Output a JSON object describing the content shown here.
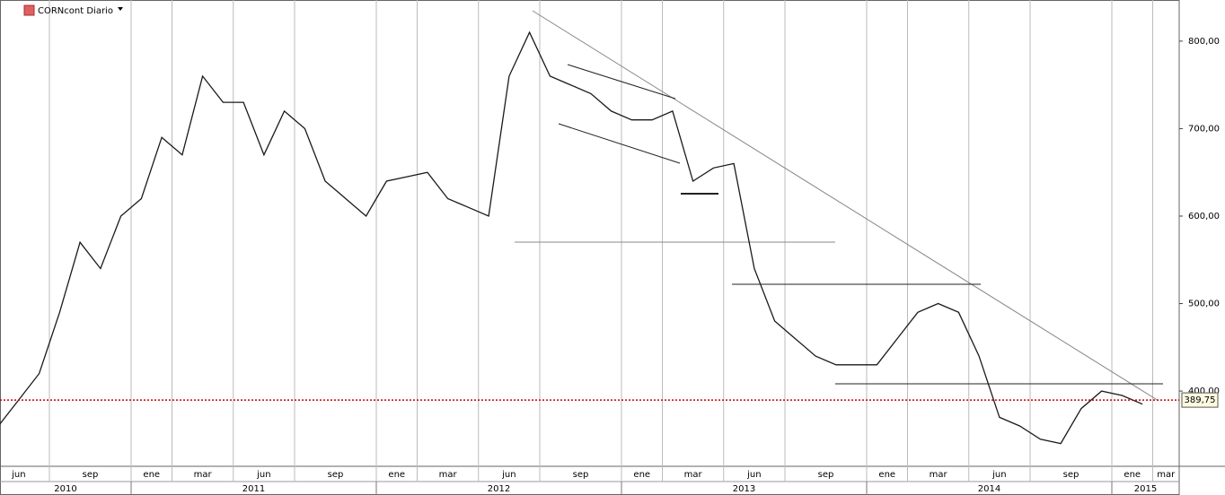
{
  "chart_data": {
    "type": "line",
    "title": "CORNcont Diario",
    "x": [
      "2010-06",
      "2010-07",
      "2010-08",
      "2010-09",
      "2010-10",
      "2010-11",
      "2010-12",
      "2011-01",
      "2011-02",
      "2011-03",
      "2011-04",
      "2011-05",
      "2011-06",
      "2011-07",
      "2011-08",
      "2011-09",
      "2011-10",
      "2011-11",
      "2011-12",
      "2012-01",
      "2012-02",
      "2012-03",
      "2012-04",
      "2012-05",
      "2012-06",
      "2012-07",
      "2012-08",
      "2012-09",
      "2012-10",
      "2012-11",
      "2012-12",
      "2013-01",
      "2013-02",
      "2013-03",
      "2013-04",
      "2013-05",
      "2013-06",
      "2013-07",
      "2013-08",
      "2013-09",
      "2013-10",
      "2013-11",
      "2013-12",
      "2014-01",
      "2014-02",
      "2014-03",
      "2014-04",
      "2014-05",
      "2014-06",
      "2014-07",
      "2014-08",
      "2014-09",
      "2014-10",
      "2014-11",
      "2014-12",
      "2015-01",
      "2015-02"
    ],
    "series": [
      {
        "name": "CORNcont",
        "color": "#1a1a1a",
        "values": [
          360,
          390,
          420,
          490,
          570,
          540,
          600,
          620,
          690,
          670,
          760,
          730,
          730,
          670,
          720,
          700,
          640,
          620,
          600,
          640,
          645,
          650,
          620,
          610,
          600,
          760,
          810,
          760,
          750,
          740,
          720,
          710,
          710,
          720,
          640,
          655,
          660,
          540,
          480,
          460,
          440,
          430,
          430,
          430,
          460,
          490,
          500,
          490,
          440,
          370,
          360,
          345,
          340,
          380,
          400,
          395,
          385
        ]
      }
    ],
    "ylim": [
      314,
      847
    ],
    "yticks": [
      {
        "value": 400,
        "label": "400,00"
      },
      {
        "value": 500,
        "label": "500,00"
      },
      {
        "value": 600,
        "label": "600,00"
      },
      {
        "value": 700,
        "label": "700,00"
      },
      {
        "value": 800,
        "label": "800,00"
      }
    ],
    "xticks": [
      {
        "value": "2010-06",
        "label": "jun"
      },
      {
        "value": "2010-09",
        "label": "sep"
      },
      {
        "value": "2011-01",
        "label": "ene"
      },
      {
        "value": "2011-03",
        "label": "mar"
      },
      {
        "value": "2011-06",
        "label": "jun"
      },
      {
        "value": "2011-09",
        "label": "sep"
      },
      {
        "value": "2012-01",
        "label": "ene"
      },
      {
        "value": "2012-03",
        "label": "mar"
      },
      {
        "value": "2012-06",
        "label": "jun"
      },
      {
        "value": "2012-09",
        "label": "sep"
      },
      {
        "value": "2013-01",
        "label": "ene"
      },
      {
        "value": "2013-03",
        "label": "mar"
      },
      {
        "value": "2013-06",
        "label": "jun"
      },
      {
        "value": "2013-09",
        "label": "sep"
      },
      {
        "value": "2014-01",
        "label": "ene"
      },
      {
        "value": "2014-03",
        "label": "mar"
      },
      {
        "value": "2014-06",
        "label": "jun"
      },
      {
        "value": "2014-09",
        "label": "sep"
      },
      {
        "value": "2015-01",
        "label": "ene"
      },
      {
        "value": "2015-03",
        "label": "mar"
      }
    ],
    "years": [
      "2010",
      "2011",
      "2012",
      "2013",
      "2014",
      "2015"
    ],
    "last_price": {
      "value": 389.75,
      "label": "389,75",
      "color": "#cc0000"
    }
  }
}
